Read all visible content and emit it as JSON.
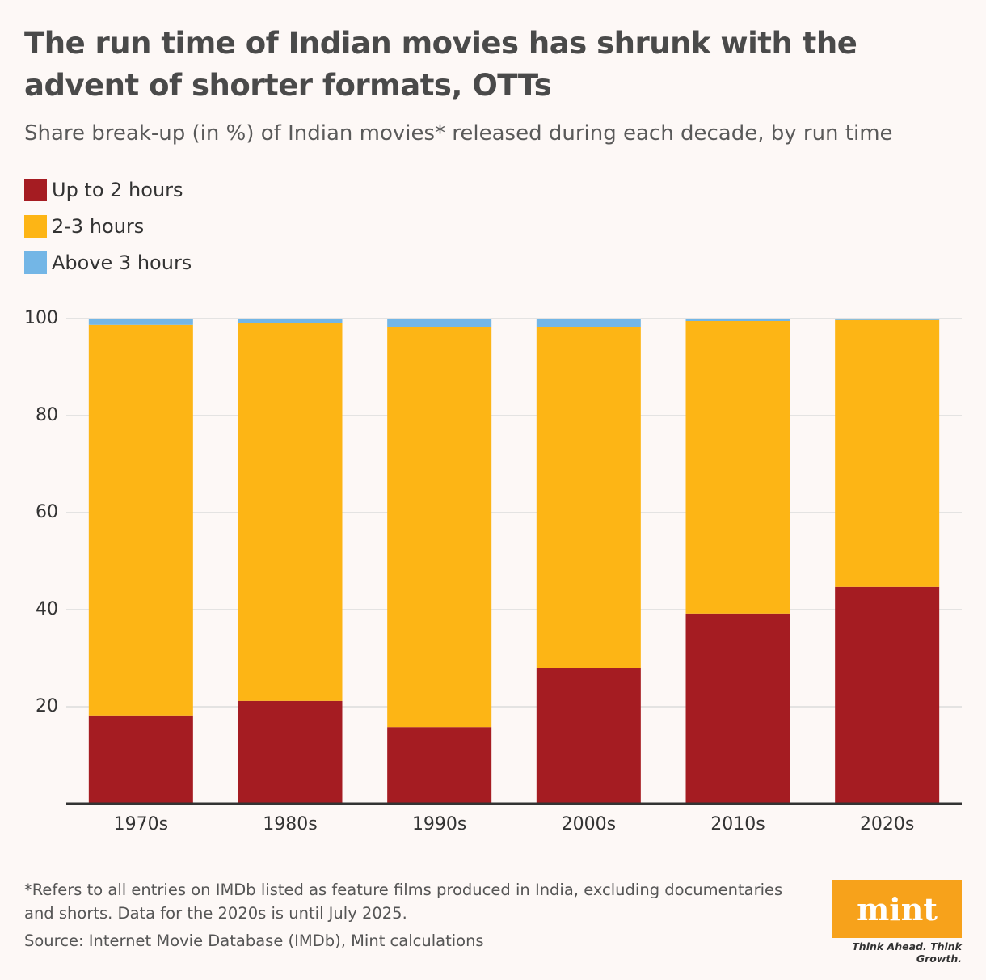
{
  "chart_data": {
    "type": "stacked_bar",
    "title": "The run time of Indian movies has shrunk with the advent of shorter formats, OTTs",
    "subtitle": "Share break-up (in %) of Indian movies* released during each decade, by run time",
    "categories": [
      "1970s",
      "1980s",
      "1990s",
      "2000s",
      "2010s",
      "2020s"
    ],
    "series": [
      {
        "name": "Up to 2 hours",
        "color": "#a51c22",
        "values": [
          18.2,
          21.2,
          15.8,
          28.0,
          39.2,
          44.7
        ]
      },
      {
        "name": "2-3 hours",
        "color": "#fdb515",
        "values": [
          80.5,
          77.8,
          82.5,
          70.3,
          60.3,
          55.0
        ]
      },
      {
        "name": "Above 3 hours",
        "color": "#73b6e6",
        "values": [
          1.3,
          1.0,
          1.7,
          1.7,
          0.5,
          0.3
        ]
      }
    ],
    "ylim": [
      0,
      100
    ],
    "yticks": [
      20,
      40,
      60,
      80,
      100
    ],
    "grid": true,
    "note": "*Refers to all entries on IMDb listed as feature films produced in India, excluding documentaries and shorts. Data for the 2020s is until July 2025.",
    "source": "Source: Internet Movie Database (IMDb), Mint calculations"
  },
  "logo": {
    "text": "mint",
    "tagline": "Think Ahead. Think Growth."
  }
}
